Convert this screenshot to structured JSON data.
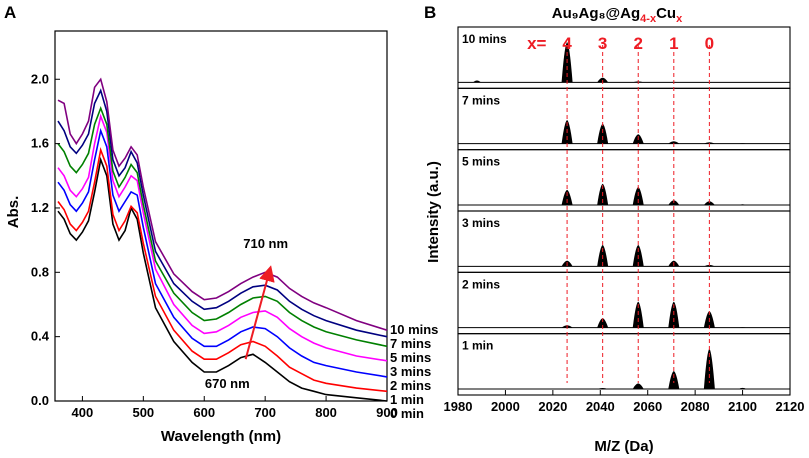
{
  "panels": {
    "a": {
      "letter": "A"
    },
    "b": {
      "letter": "B"
    }
  },
  "colors": {
    "uv_series": [
      "#000000",
      "#ff0000",
      "#0000ff",
      "#ff00ff",
      "#008000",
      "#000080",
      "#800080"
    ],
    "guide": "#ee1c24",
    "ms_fill": "#000000"
  },
  "chart_data": [
    {
      "type": "line",
      "title": "",
      "xlabel": "Wavelength (nm)",
      "ylabel": "Abs.",
      "xlim": [
        355,
        900
      ],
      "ylim": [
        0.0,
        2.3
      ],
      "xticks": [
        "400",
        "500",
        "600",
        "700",
        "800",
        "900"
      ],
      "yticks": [
        "0.0",
        "0.4",
        "0.8",
        "1.2",
        "1.6",
        "2.0"
      ],
      "x": [
        360,
        370,
        380,
        390,
        400,
        410,
        420,
        430,
        440,
        450,
        460,
        470,
        480,
        490,
        500,
        520,
        550,
        580,
        600,
        620,
        640,
        660,
        680,
        700,
        720,
        740,
        760,
        780,
        800,
        850,
        900
      ],
      "series": [
        {
          "name": "0 min",
          "values": [
            1.18,
            1.13,
            1.04,
            1.0,
            1.05,
            1.12,
            1.3,
            1.5,
            1.4,
            1.1,
            1.0,
            1.06,
            1.2,
            1.13,
            0.92,
            0.58,
            0.37,
            0.24,
            0.18,
            0.18,
            0.22,
            0.27,
            0.29,
            0.24,
            0.18,
            0.12,
            0.08,
            0.06,
            0.04,
            0.02,
            0.0
          ]
        },
        {
          "name": "1 min",
          "values": [
            1.24,
            1.19,
            1.1,
            1.06,
            1.11,
            1.18,
            1.36,
            1.56,
            1.46,
            1.16,
            1.06,
            1.12,
            1.21,
            1.17,
            0.98,
            0.65,
            0.44,
            0.31,
            0.26,
            0.26,
            0.3,
            0.35,
            0.37,
            0.34,
            0.28,
            0.21,
            0.17,
            0.13,
            0.11,
            0.08,
            0.06
          ]
        },
        {
          "name": "2 mins",
          "values": [
            1.36,
            1.31,
            1.22,
            1.18,
            1.23,
            1.3,
            1.5,
            1.68,
            1.58,
            1.28,
            1.18,
            1.24,
            1.3,
            1.28,
            1.08,
            0.73,
            0.52,
            0.39,
            0.34,
            0.34,
            0.38,
            0.43,
            0.46,
            0.45,
            0.4,
            0.33,
            0.28,
            0.24,
            0.22,
            0.18,
            0.15
          ]
        },
        {
          "name": "3 mins",
          "values": [
            1.45,
            1.4,
            1.31,
            1.27,
            1.32,
            1.39,
            1.6,
            1.77,
            1.67,
            1.37,
            1.27,
            1.33,
            1.4,
            1.37,
            1.17,
            0.82,
            0.6,
            0.47,
            0.42,
            0.43,
            0.47,
            0.52,
            0.55,
            0.56,
            0.52,
            0.45,
            0.4,
            0.36,
            0.33,
            0.28,
            0.25
          ]
        },
        {
          "name": "5 mins",
          "values": [
            1.6,
            1.55,
            1.46,
            1.42,
            1.47,
            1.54,
            1.72,
            1.82,
            1.72,
            1.43,
            1.33,
            1.39,
            1.47,
            1.42,
            1.22,
            0.87,
            0.67,
            0.55,
            0.5,
            0.51,
            0.55,
            0.6,
            0.64,
            0.65,
            0.62,
            0.55,
            0.5,
            0.46,
            0.43,
            0.38,
            0.34
          ]
        },
        {
          "name": "7 mins",
          "values": [
            1.74,
            1.68,
            1.58,
            1.54,
            1.59,
            1.66,
            1.85,
            1.93,
            1.8,
            1.5,
            1.4,
            1.45,
            1.55,
            1.48,
            1.28,
            0.93,
            0.73,
            0.62,
            0.57,
            0.58,
            0.62,
            0.67,
            0.71,
            0.72,
            0.69,
            0.62,
            0.57,
            0.53,
            0.5,
            0.44,
            0.4
          ]
        },
        {
          "name": "10 mins",
          "values": [
            1.87,
            1.85,
            1.66,
            1.6,
            1.66,
            1.74,
            1.95,
            2.0,
            1.86,
            1.56,
            1.46,
            1.51,
            1.58,
            1.53,
            1.33,
            0.99,
            0.79,
            0.68,
            0.63,
            0.64,
            0.68,
            0.73,
            0.77,
            0.8,
            0.77,
            0.7,
            0.65,
            0.61,
            0.58,
            0.5,
            0.44
          ]
        }
      ],
      "annotations": [
        {
          "text": "710 nm",
          "x": 710,
          "y": 0.95
        },
        {
          "text": "670 nm",
          "x": 670,
          "y": 0.08
        }
      ],
      "arrow": {
        "from": [
          668,
          0.26
        ],
        "to": [
          708,
          0.82
        ]
      }
    },
    {
      "type": "bar",
      "title": "Au₉Ag₈@Ag",
      "title_sub": "4-x",
      "title_tail": "Cu",
      "title_tail_sub": "x",
      "xlabel": "M/Z (Da)",
      "ylabel": "Intensity (a.u.)",
      "xlim": [
        1980,
        2120
      ],
      "xticks": [
        "1980",
        "2000",
        "2020",
        "2040",
        "2060",
        "2080",
        "2100",
        "2120"
      ],
      "x_label_prefix": "x=",
      "peak_positions": [
        2026,
        2041,
        2056,
        2071,
        2086
      ],
      "peak_labels": [
        "4",
        "3",
        "2",
        "1",
        "0"
      ],
      "small_peak_positions": [
        1988,
        2100
      ],
      "panels": [
        {
          "name": "10 mins",
          "values": [
            0.85,
            0.1,
            0.02,
            0.01,
            0.0
          ],
          "small": [
            0.05,
            0.0
          ]
        },
        {
          "name": "7 mins",
          "values": [
            0.5,
            0.42,
            0.2,
            0.05,
            0.03
          ],
          "small": [
            0.0,
            0.01
          ]
        },
        {
          "name": "5 mins",
          "values": [
            0.32,
            0.45,
            0.38,
            0.1,
            0.08
          ],
          "small": [
            0.0,
            0.02
          ]
        },
        {
          "name": "3 mins",
          "values": [
            0.12,
            0.45,
            0.45,
            0.12,
            0.03
          ],
          "small": [
            0.0,
            0.01
          ]
        },
        {
          "name": "2 mins",
          "values": [
            0.05,
            0.2,
            0.55,
            0.55,
            0.35
          ],
          "small": [
            0.0,
            0.01
          ]
        },
        {
          "name": "1 min",
          "values": [
            0.0,
            0.02,
            0.12,
            0.38,
            0.85
          ],
          "small": [
            0.0,
            0.03
          ]
        }
      ]
    }
  ]
}
